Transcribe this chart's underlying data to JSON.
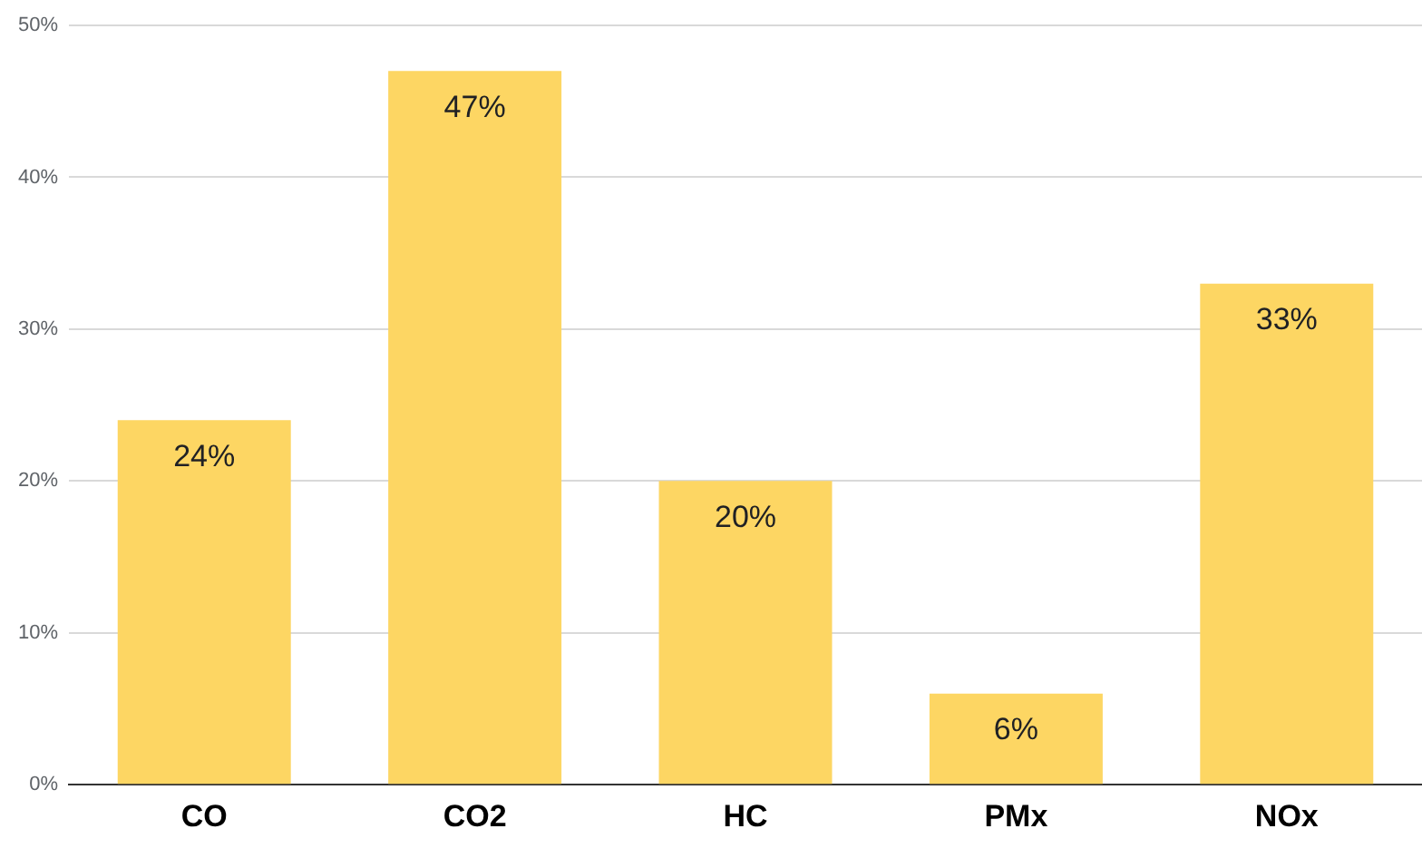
{
  "chart_data": {
    "type": "bar",
    "categories": [
      "CO",
      "CO2",
      "HC",
      "PMx",
      "NOx"
    ],
    "values": [
      24,
      47,
      20,
      6,
      33
    ],
    "color": "#fdd663",
    "value_labels": [
      "24%",
      "47%",
      "20%",
      "6%",
      "33%"
    ],
    "ylim": [
      0,
      50
    ],
    "yticks": [
      {
        "value": 0,
        "label": "0%"
      },
      {
        "value": 10,
        "label": "10%"
      },
      {
        "value": 20,
        "label": "20%"
      },
      {
        "value": 30,
        "label": "30%"
      },
      {
        "value": 40,
        "label": "40%"
      },
      {
        "value": 50,
        "label": "50%"
      }
    ],
    "grid": "y",
    "legend": false
  }
}
